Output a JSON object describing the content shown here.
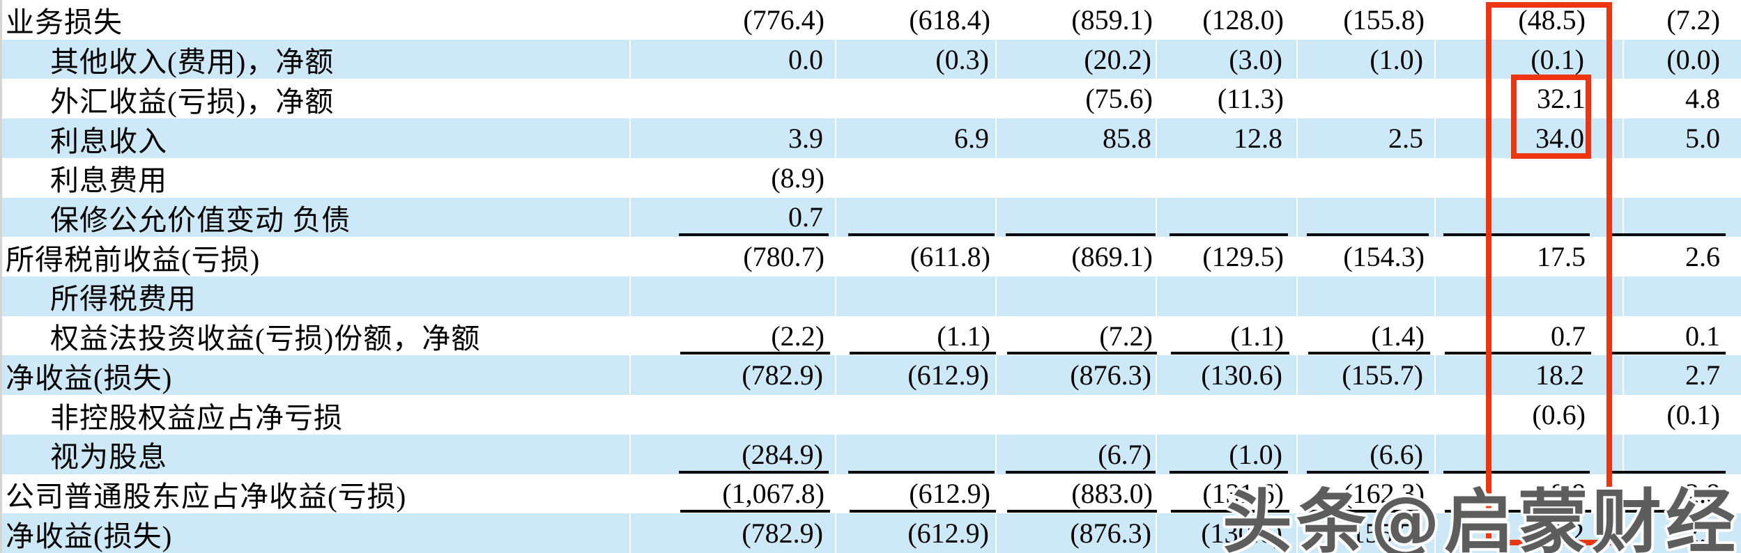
{
  "colors": {
    "row_shade": "#cde8f6",
    "highlight_red": "#ee3512",
    "text": "#000000"
  },
  "table": {
    "rows": [
      {
        "label": "业务损失",
        "indent": 0,
        "underline": false,
        "values": [
          "(776.4)",
          "(618.4)",
          "(859.1)",
          "(128.0)",
          "(155.8)",
          "(48.5)",
          "(7.2)"
        ]
      },
      {
        "label": "其他收入(费用)，净额",
        "indent": 1,
        "underline": false,
        "values": [
          "0.0",
          "(0.3)",
          "(20.2)",
          "(3.0)",
          "(1.0)",
          "(0.1)",
          "(0.0)"
        ]
      },
      {
        "label": "外汇收益(亏损)，净额",
        "indent": 1,
        "underline": false,
        "values": [
          "",
          "",
          "(75.6)",
          "(11.3)",
          "",
          "32.1",
          "4.8"
        ]
      },
      {
        "label": "利息收入",
        "indent": 1,
        "underline": false,
        "values": [
          "3.9",
          "6.9",
          "85.8",
          "12.8",
          "2.5",
          "34.0",
          "5.0"
        ]
      },
      {
        "label": "利息费用",
        "indent": 1,
        "underline": false,
        "values": [
          "(8.9)",
          "",
          "",
          "",
          "",
          "",
          ""
        ]
      },
      {
        "label": "保修公允价值变动 负债",
        "indent": 1,
        "underline": true,
        "values": [
          "0.7",
          "",
          "",
          "",
          "",
          "",
          ""
        ]
      },
      {
        "label": "所得税前收益(亏损)",
        "indent": 0,
        "underline": false,
        "values": [
          "(780.7)",
          "(611.8)",
          "(869.1)",
          "(129.5)",
          "(154.3)",
          "17.5",
          "2.6"
        ]
      },
      {
        "label": "所得税费用",
        "indent": 1,
        "underline": false,
        "values": [
          "",
          "",
          "",
          "",
          "",
          "",
          ""
        ]
      },
      {
        "label": "权益法投资收益(亏损)份额，净额",
        "indent": 1,
        "underline": true,
        "values": [
          "(2.2)",
          "(1.1)",
          "(7.2)",
          "(1.1)",
          "(1.4)",
          "0.7",
          "0.1"
        ]
      },
      {
        "label": "净收益(损失)",
        "indent": 0,
        "underline": false,
        "values": [
          "(782.9)",
          "(612.9)",
          "(876.3)",
          "(130.6)",
          "(155.7)",
          "18.2",
          "2.7"
        ]
      },
      {
        "label": "非控股权益应占净亏损",
        "indent": 1,
        "underline": false,
        "values": [
          "",
          "",
          "",
          "",
          "",
          "(0.6)",
          "(0.1)"
        ]
      },
      {
        "label": "视为股息",
        "indent": 1,
        "underline": true,
        "values": [
          "(284.9)",
          "",
          "(6.7)",
          "(1.0)",
          "(6.6)",
          "",
          ""
        ]
      },
      {
        "label": "公司普通股东应占净收益(亏损)",
        "indent": 0,
        "underline": true,
        "values": [
          "(1,067.8)",
          "(612.9)",
          "(883.0)",
          "(131.6)",
          "(162.3)",
          "18.8",
          "2.8"
        ]
      },
      {
        "label": "净收益(损失)",
        "indent": 0,
        "underline": false,
        "values": [
          "(782.9)",
          "(612.9)",
          "(876.3)",
          "(130.6)",
          "(155.7)",
          "18.2",
          "2.7"
        ]
      }
    ]
  },
  "annotations": {
    "column_highlight": {
      "column_index": 6,
      "top_value": "(48.5)",
      "bottom_value": "18.2"
    },
    "cell_highlight": {
      "column_index": 6,
      "values": [
        "32.1",
        "34.0"
      ]
    }
  },
  "watermark": {
    "text": "头条@启蒙财经"
  }
}
